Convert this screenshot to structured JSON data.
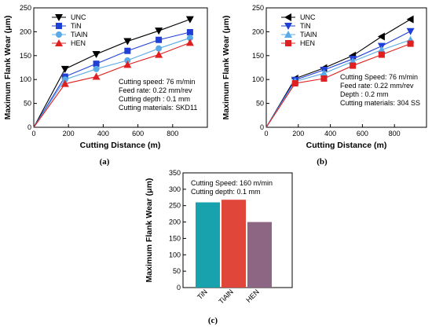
{
  "chart_data": [
    {
      "type": "line",
      "panel_label": "(a)",
      "xlabel": "Cutting Distance (m)",
      "ylabel": "Maximum Flank Wear (μm)",
      "xlim": [
        0,
        1000
      ],
      "ylim": [
        0,
        250
      ],
      "xticks": [
        0,
        200,
        400,
        600,
        800
      ],
      "yticks": [
        0,
        50,
        100,
        150,
        200,
        250
      ],
      "legend_position": "top-left",
      "x": [
        0,
        180,
        360,
        540,
        720,
        900
      ],
      "series": [
        {
          "name": "UNC",
          "values": [
            0,
            122,
            153,
            180,
            202,
            226
          ],
          "color": "#000000",
          "marker": "triangle-down"
        },
        {
          "name": "TiN",
          "values": [
            0,
            106,
            133,
            160,
            183,
            199
          ],
          "color": "#1f3fd6",
          "marker": "square"
        },
        {
          "name": "TiAlN",
          "values": [
            0,
            100,
            122,
            140,
            165,
            187
          ],
          "color": "#5aaae8",
          "marker": "circle"
        },
        {
          "name": "HEN",
          "values": [
            0,
            91,
            106,
            131,
            152,
            177
          ],
          "color": "#e02020",
          "marker": "triangle-up"
        }
      ],
      "annotations": [
        "Cutting speed: 76 m/min",
        "Feed rate: 0.22 mm/rev",
        "Cutting depth : 0.1 mm",
        "Cutting materials: SKD11"
      ]
    },
    {
      "type": "line",
      "panel_label": "(b)",
      "xlabel": "Cutting Distance (m)",
      "ylabel": "Maximum Flank Wear (μm)",
      "xlim": [
        0,
        1000
      ],
      "ylim": [
        0,
        250
      ],
      "xticks": [
        0,
        200,
        400,
        600,
        800
      ],
      "yticks": [
        0,
        50,
        100,
        150,
        200,
        250
      ],
      "legend_position": "top-left",
      "x": [
        0,
        180,
        360,
        540,
        720,
        900
      ],
      "series": [
        {
          "name": "UNC",
          "values": [
            0,
            102,
            124,
            150,
            190,
            226
          ],
          "color": "#000000",
          "marker": "triangle-left"
        },
        {
          "name": "TiN",
          "values": [
            0,
            99,
            120,
            143,
            170,
            201
          ],
          "color": "#1f3fd6",
          "marker": "triangle-down"
        },
        {
          "name": "TiAlN",
          "values": [
            0,
            96,
            113,
            138,
            162,
            183
          ],
          "color": "#5aaae8",
          "marker": "triangle-up"
        },
        {
          "name": "HEN",
          "values": [
            0,
            92,
            102,
            129,
            152,
            175
          ],
          "color": "#e02020",
          "marker": "square"
        }
      ],
      "annotations": [
        "Cutting Speed: 76 m/min",
        "Feed rate: 0.22 mm/rev",
        "Depth : 0.2 mm",
        "Cutting materials: 304 SS"
      ]
    },
    {
      "type": "bar",
      "panel_label": "(c)",
      "xlabel": "",
      "ylabel": "Maximum Flank Wear (μm)",
      "ylim": [
        0,
        350
      ],
      "yticks": [
        0,
        50,
        100,
        150,
        200,
        250,
        300,
        350
      ],
      "categories": [
        "TiN",
        "TiAlN",
        "HEN"
      ],
      "values": [
        260,
        268,
        200
      ],
      "colors": [
        "#17a2ae",
        "#e0463a",
        "#8c6683"
      ],
      "annotations": [
        "Cutting Speed: 160 m/min",
        "Cutting depth: 0.1 mm"
      ]
    }
  ]
}
